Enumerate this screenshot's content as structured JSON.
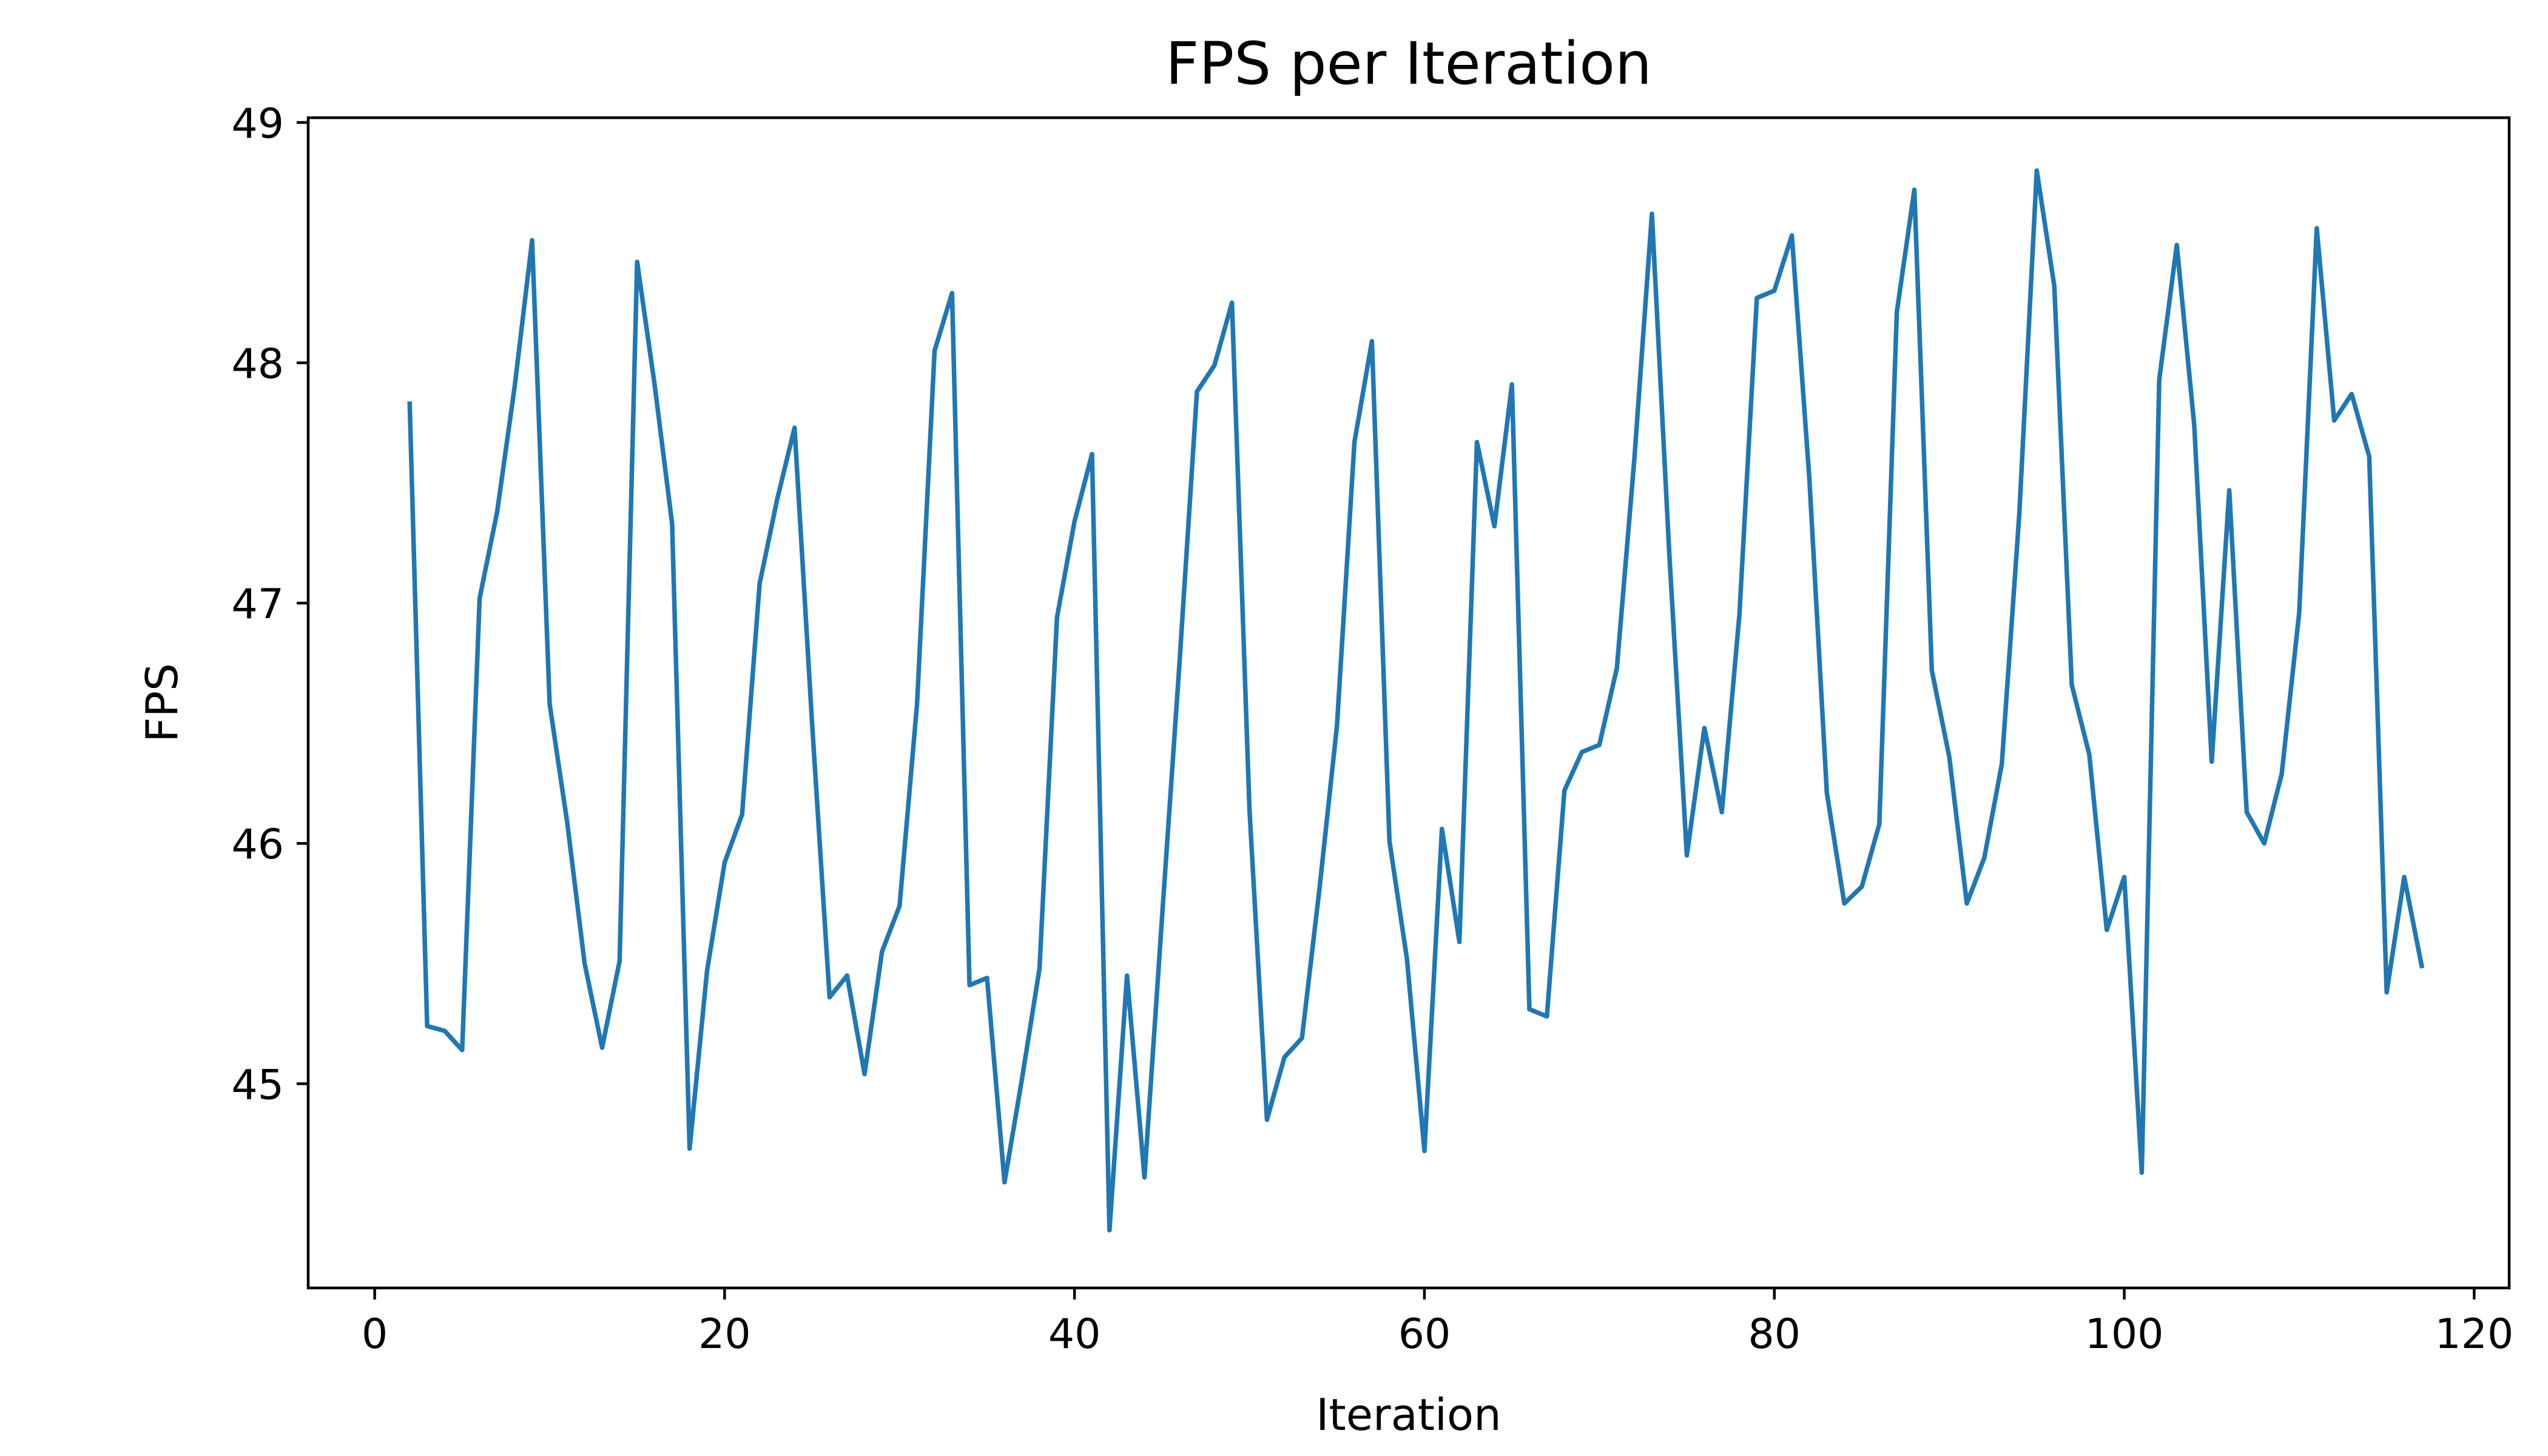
{
  "chart_data": {
    "type": "line",
    "title": "FPS per Iteration",
    "xlabel": "Iteration",
    "ylabel": "FPS",
    "xlim": [
      -3.8,
      122
    ],
    "ylim": [
      44.15,
      49.02
    ],
    "xticks": [
      0,
      20,
      40,
      60,
      80,
      100,
      120
    ],
    "yticks": [
      45,
      46,
      47,
      48,
      49
    ],
    "grid": false,
    "legend": null,
    "series": [
      {
        "color": "#1f77b4",
        "x": [
          2,
          3,
          4,
          5,
          6,
          7,
          8,
          9,
          10,
          11,
          12,
          13,
          14,
          15,
          16,
          17,
          18,
          19,
          20,
          21,
          22,
          23,
          24,
          25,
          26,
          27,
          28,
          29,
          30,
          31,
          32,
          33,
          34,
          35,
          36,
          37,
          38,
          39,
          40,
          41,
          42,
          43,
          44,
          45,
          46,
          47,
          48,
          49,
          50,
          51,
          52,
          53,
          54,
          55,
          56,
          57,
          58,
          59,
          60,
          61,
          62,
          63,
          64,
          65,
          66,
          67,
          68,
          69,
          70,
          71,
          72,
          73,
          74,
          75,
          76,
          77,
          78,
          79,
          80,
          81,
          82,
          83,
          84,
          85,
          86,
          87,
          88,
          89,
          90,
          91,
          92,
          93,
          94,
          95,
          96,
          97,
          98,
          99,
          100,
          101,
          102,
          103,
          104,
          105,
          106,
          107,
          108,
          109,
          110,
          111,
          112,
          113,
          114,
          115,
          116,
          117
        ],
        "y": [
          47.83,
          45.24,
          45.22,
          45.14,
          47.02,
          47.38,
          47.9,
          48.51,
          46.58,
          46.09,
          45.5,
          45.15,
          45.51,
          48.42,
          47.91,
          47.33,
          44.73,
          45.47,
          45.92,
          46.12,
          47.08,
          47.43,
          47.73,
          46.5,
          45.36,
          45.45,
          45.04,
          45.55,
          45.74,
          46.58,
          48.05,
          48.29,
          45.41,
          45.44,
          44.59,
          45.02,
          45.48,
          46.94,
          47.34,
          47.62,
          44.39,
          45.45,
          44.61,
          45.69,
          46.75,
          47.88,
          47.99,
          48.25,
          46.14,
          44.85,
          45.11,
          45.19,
          45.81,
          46.49,
          47.67,
          48.09,
          46.01,
          45.52,
          44.72,
          46.06,
          45.59,
          47.67,
          47.32,
          47.91,
          45.31,
          45.28,
          46.22,
          46.38,
          46.41,
          46.73,
          47.6,
          48.62,
          47.2,
          45.95,
          46.48,
          46.13,
          46.95,
          48.27,
          48.3,
          48.53,
          47.52,
          46.21,
          45.75,
          45.82,
          46.08,
          48.21,
          48.72,
          46.72,
          46.36,
          45.75,
          45.94,
          46.33,
          47.37,
          48.8,
          48.32,
          46.66,
          46.37,
          45.64,
          45.86,
          44.63,
          47.93,
          48.49,
          47.74,
          46.34,
          47.47,
          46.13,
          46.0,
          46.29,
          46.96,
          48.56,
          47.76,
          47.87,
          47.61,
          45.38,
          45.86,
          45.49
        ]
      }
    ]
  }
}
